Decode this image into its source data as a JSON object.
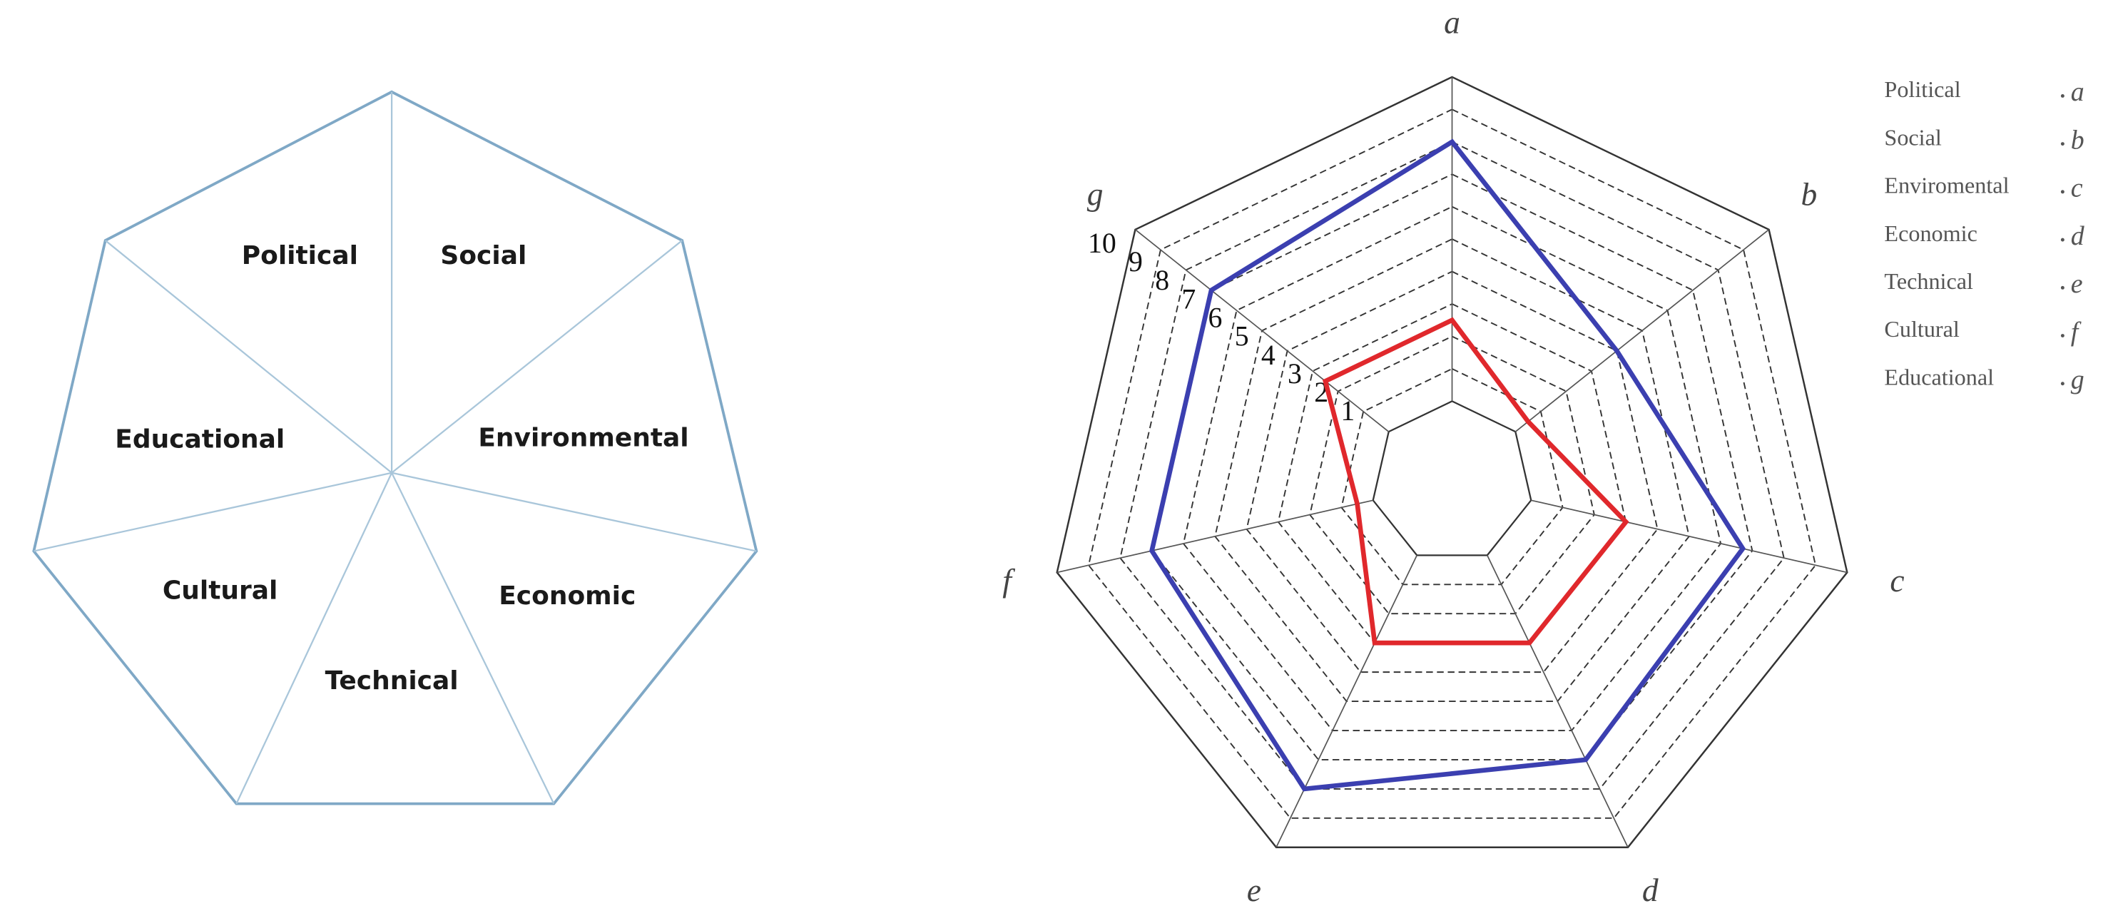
{
  "diagram": {
    "segments": [
      "Political",
      "Social",
      "Environmental",
      "Economic",
      "Technical",
      "Cultural",
      "Educational"
    ]
  },
  "chart_data": {
    "type": "radar",
    "categories": [
      "a",
      "b",
      "c",
      "d",
      "e",
      "f",
      "g"
    ],
    "series": [
      {
        "color": "#3b3fb0",
        "values": [
          8,
          4,
          6.7,
          7,
          8,
          7,
          7
        ]
      },
      {
        "color": "#e0282c",
        "values": [
          2.5,
          0.5,
          3,
          3,
          3,
          0.5,
          2.5
        ]
      }
    ],
    "ylim": [
      0,
      10
    ],
    "yticks": [
      1,
      2,
      3,
      4,
      5,
      6,
      7,
      8,
      9,
      10
    ],
    "axis_key": [
      {
        "name": "Political",
        "letter": "a"
      },
      {
        "name": "Social",
        "letter": "b"
      },
      {
        "name": "Enviromental",
        "letter": "c"
      },
      {
        "name": "Economic",
        "letter": "d"
      },
      {
        "name": "Technical",
        "letter": "e"
      },
      {
        "name": "Cultural",
        "letter": "f"
      },
      {
        "name": "Educational",
        "letter": "g"
      }
    ]
  }
}
